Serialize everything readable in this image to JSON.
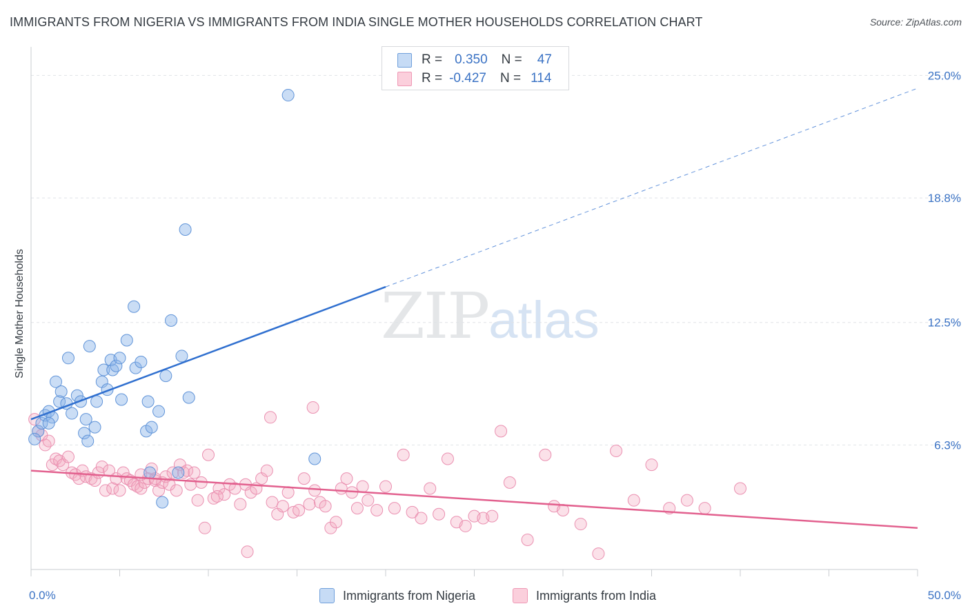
{
  "header": {
    "title": "IMMIGRANTS FROM NIGERIA VS IMMIGRANTS FROM INDIA SINGLE MOTHER HOUSEHOLDS CORRELATION CHART",
    "source": "Source: ZipAtlas.com"
  },
  "legend": {
    "nigeria": {
      "r_label": "R =",
      "r_value": "0.350",
      "n_label": "N =",
      "n_value": "47"
    },
    "india": {
      "r_label": "R =",
      "r_value": "-0.427",
      "n_label": "N =",
      "n_value": "114"
    }
  },
  "watermark": {
    "zip": "ZIP",
    "atlas": "atlas"
  },
  "chart_data": {
    "type": "scatter",
    "title": "IMMIGRANTS FROM NIGERIA VS IMMIGRANTS FROM INDIA SINGLE MOTHER HOUSEHOLDS CORRELATION CHART",
    "xlabel": "",
    "ylabel": "Single Mother Households",
    "xlim": [
      0,
      50
    ],
    "ylim": [
      0,
      26.2
    ],
    "x_tick_labels": [
      "0.0%",
      "50.0%"
    ],
    "y_ticks": [
      6.3,
      12.5,
      18.8,
      25.0
    ],
    "y_tick_labels": [
      "6.3%",
      "12.5%",
      "18.8%",
      "25.0%"
    ],
    "grid": true,
    "legend_position": "bottom-center",
    "series": [
      {
        "name": "Immigrants from Nigeria",
        "color": "#8ab4e8",
        "line_color": "#2f6fcf",
        "r": 0.35,
        "n": 47,
        "trend": {
          "x0": 0,
          "y0": 7.6,
          "x1": 20,
          "y1": 14.3,
          "dashed_to_x": 50
        },
        "points": [
          [
            0.4,
            7.0
          ],
          [
            0.6,
            7.4
          ],
          [
            0.8,
            7.8
          ],
          [
            0.2,
            6.6
          ],
          [
            1.0,
            8.0
          ],
          [
            1.2,
            7.7
          ],
          [
            1.4,
            9.5
          ],
          [
            1.7,
            9.0
          ],
          [
            1.6,
            8.5
          ],
          [
            2.0,
            8.4
          ],
          [
            2.3,
            7.9
          ],
          [
            2.1,
            10.7
          ],
          [
            2.6,
            8.8
          ],
          [
            2.8,
            8.5
          ],
          [
            3.0,
            6.9
          ],
          [
            3.1,
            7.6
          ],
          [
            3.2,
            6.5
          ],
          [
            3.3,
            11.3
          ],
          [
            3.6,
            7.2
          ],
          [
            3.7,
            8.5
          ],
          [
            4.0,
            9.5
          ],
          [
            4.1,
            10.1
          ],
          [
            4.3,
            9.1
          ],
          [
            4.6,
            10.1
          ],
          [
            4.5,
            10.6
          ],
          [
            4.8,
            10.3
          ],
          [
            5.0,
            10.7
          ],
          [
            5.1,
            8.6
          ],
          [
            5.4,
            11.6
          ],
          [
            5.8,
            13.3
          ],
          [
            5.9,
            10.2
          ],
          [
            6.2,
            10.5
          ],
          [
            6.5,
            7.0
          ],
          [
            6.6,
            8.5
          ],
          [
            6.8,
            7.2
          ],
          [
            6.7,
            4.9
          ],
          [
            7.2,
            8.0
          ],
          [
            7.4,
            3.4
          ],
          [
            7.6,
            9.8
          ],
          [
            7.9,
            12.6
          ],
          [
            8.3,
            4.9
          ],
          [
            8.5,
            10.8
          ],
          [
            8.7,
            17.2
          ],
          [
            8.9,
            8.7
          ],
          [
            14.5,
            24.0
          ],
          [
            16.0,
            5.6
          ],
          [
            1.0,
            7.4
          ]
        ]
      },
      {
        "name": "Immigrants from India",
        "color": "#f4a8c0",
        "line_color": "#e2608e",
        "r": -0.427,
        "n": 114,
        "trend": {
          "x0": 0,
          "y0": 5.0,
          "x1": 50,
          "y1": 2.1
        },
        "points": [
          [
            0.2,
            7.6
          ],
          [
            0.4,
            7.0
          ],
          [
            0.6,
            6.8
          ],
          [
            0.8,
            6.3
          ],
          [
            1.0,
            6.5
          ],
          [
            1.2,
            5.3
          ],
          [
            1.4,
            5.6
          ],
          [
            1.6,
            5.5
          ],
          [
            1.8,
            5.3
          ],
          [
            2.1,
            5.7
          ],
          [
            2.3,
            4.9
          ],
          [
            2.5,
            4.8
          ],
          [
            2.7,
            4.6
          ],
          [
            2.9,
            5.0
          ],
          [
            3.1,
            4.7
          ],
          [
            3.4,
            4.6
          ],
          [
            3.6,
            4.5
          ],
          [
            3.8,
            4.9
          ],
          [
            4.0,
            5.2
          ],
          [
            4.2,
            4.0
          ],
          [
            4.4,
            5.0
          ],
          [
            4.6,
            4.1
          ],
          [
            4.8,
            4.6
          ],
          [
            5.0,
            4.0
          ],
          [
            5.2,
            4.9
          ],
          [
            5.4,
            4.6
          ],
          [
            5.6,
            4.5
          ],
          [
            5.8,
            4.3
          ],
          [
            6.0,
            4.2
          ],
          [
            6.2,
            4.1
          ],
          [
            6.4,
            4.4
          ],
          [
            6.6,
            4.6
          ],
          [
            6.8,
            5.1
          ],
          [
            7.0,
            4.5
          ],
          [
            7.2,
            4.0
          ],
          [
            7.4,
            4.4
          ],
          [
            7.6,
            4.7
          ],
          [
            7.8,
            4.3
          ],
          [
            8.0,
            4.9
          ],
          [
            8.2,
            4.0
          ],
          [
            8.4,
            5.3
          ],
          [
            8.6,
            4.9
          ],
          [
            8.8,
            5.0
          ],
          [
            9.0,
            4.3
          ],
          [
            9.2,
            4.9
          ],
          [
            9.4,
            3.5
          ],
          [
            9.6,
            4.4
          ],
          [
            9.8,
            2.1
          ],
          [
            10.0,
            5.8
          ],
          [
            10.3,
            3.6
          ],
          [
            10.6,
            4.1
          ],
          [
            10.9,
            3.8
          ],
          [
            11.2,
            4.3
          ],
          [
            11.5,
            4.1
          ],
          [
            11.8,
            3.3
          ],
          [
            12.1,
            4.3
          ],
          [
            12.4,
            3.9
          ],
          [
            12.7,
            4.1
          ],
          [
            13.0,
            4.6
          ],
          [
            13.3,
            5.0
          ],
          [
            13.6,
            3.4
          ],
          [
            13.9,
            2.8
          ],
          [
            14.2,
            3.2
          ],
          [
            14.5,
            3.9
          ],
          [
            14.8,
            2.9
          ],
          [
            15.1,
            3.0
          ],
          [
            15.4,
            4.6
          ],
          [
            15.7,
            3.3
          ],
          [
            16.0,
            4.0
          ],
          [
            16.3,
            3.4
          ],
          [
            16.6,
            3.2
          ],
          [
            16.9,
            2.1
          ],
          [
            17.2,
            2.4
          ],
          [
            17.5,
            4.1
          ],
          [
            17.8,
            4.6
          ],
          [
            18.1,
            3.9
          ],
          [
            18.4,
            3.1
          ],
          [
            18.7,
            4.2
          ],
          [
            19.0,
            3.5
          ],
          [
            19.5,
            3.0
          ],
          [
            20.0,
            4.2
          ],
          [
            20.5,
            3.1
          ],
          [
            21.0,
            5.8
          ],
          [
            21.5,
            2.9
          ],
          [
            22.0,
            2.6
          ],
          [
            22.5,
            4.1
          ],
          [
            23.0,
            2.8
          ],
          [
            23.5,
            5.6
          ],
          [
            24.0,
            2.4
          ],
          [
            24.5,
            2.2
          ],
          [
            25.0,
            2.7
          ],
          [
            25.5,
            2.6
          ],
          [
            26.0,
            2.7
          ],
          [
            26.5,
            7.0
          ],
          [
            27.0,
            4.4
          ],
          [
            28.0,
            1.5
          ],
          [
            29.0,
            5.8
          ],
          [
            29.5,
            3.2
          ],
          [
            30.0,
            3.0
          ],
          [
            31.0,
            2.3
          ],
          [
            32.0,
            0.8
          ],
          [
            33.0,
            6.0
          ],
          [
            34.0,
            3.5
          ],
          [
            35.0,
            5.3
          ],
          [
            36.0,
            3.1
          ],
          [
            37.0,
            3.5
          ],
          [
            38.0,
            3.1
          ],
          [
            40.0,
            4.1
          ],
          [
            15.9,
            8.2
          ],
          [
            13.5,
            7.7
          ],
          [
            10.5,
            3.7
          ],
          [
            12.2,
            0.9
          ],
          [
            7.0,
            4.6
          ],
          [
            6.2,
            4.8
          ]
        ]
      }
    ]
  },
  "legend_bottom": {
    "nigeria": "Immigrants from Nigeria",
    "india": "Immigrants from India"
  }
}
